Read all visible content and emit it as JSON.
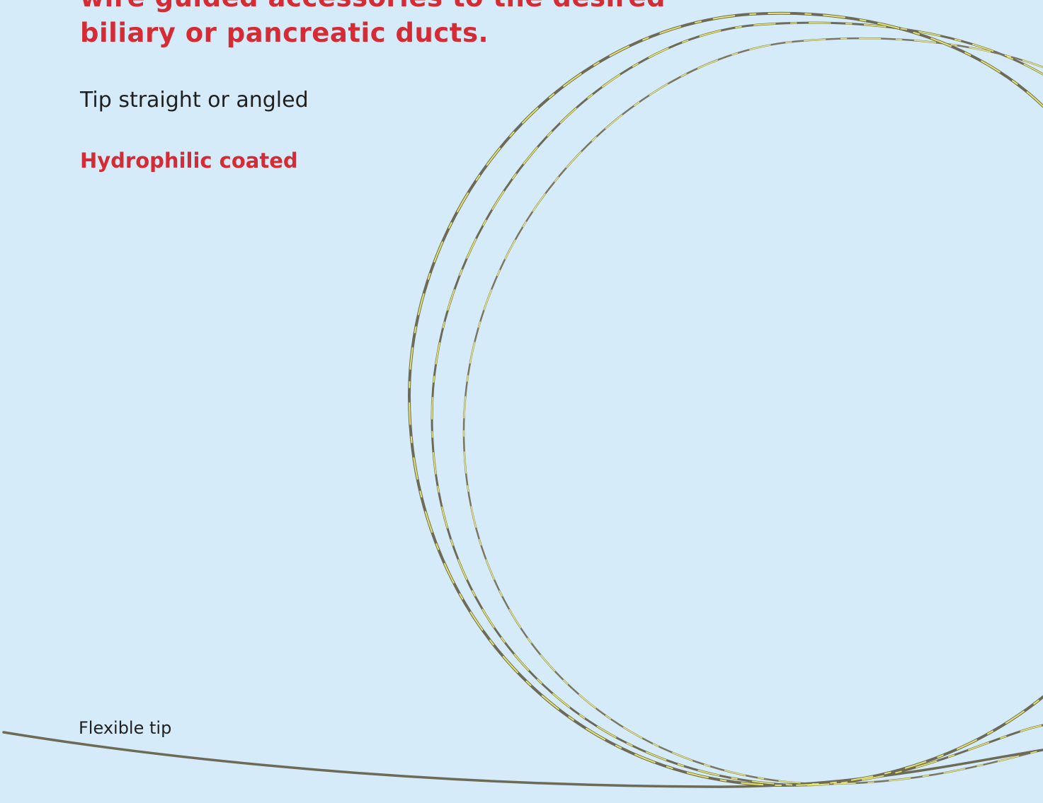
{
  "headline": {
    "line1": "wire guided accessories to the desired",
    "line2": "biliary or pancreatic ducts."
  },
  "features": [
    "Tip straight or angled",
    "Hydrophilic coated"
  ],
  "callout": "Flexible tip"
}
